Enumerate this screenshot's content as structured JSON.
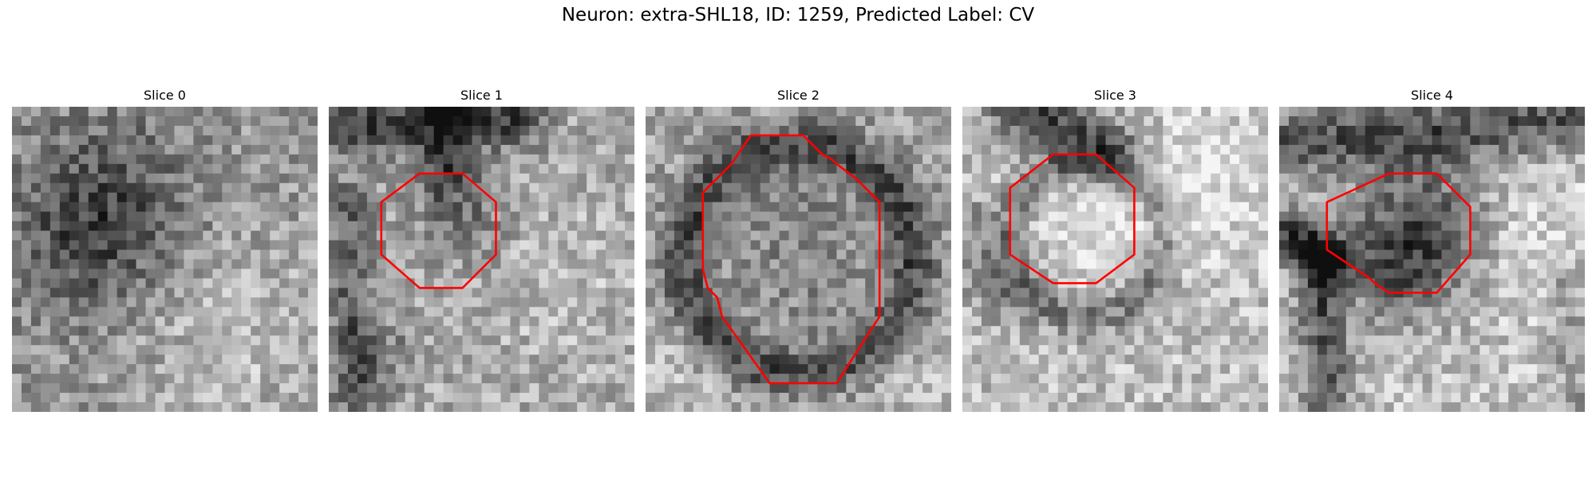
{
  "figure": {
    "title": "Neuron: extra-SHL18, ID: 1259, Predicted Label: CV",
    "outline_color": "#ff0000"
  },
  "panels": [
    {
      "title": "Slice 0",
      "has_outline": false
    },
    {
      "title": "Slice 1",
      "has_outline": true
    },
    {
      "title": "Slice 2",
      "has_outline": true
    },
    {
      "title": "Slice 3",
      "has_outline": true
    },
    {
      "title": "Slice 4",
      "has_outline": true
    }
  ]
}
